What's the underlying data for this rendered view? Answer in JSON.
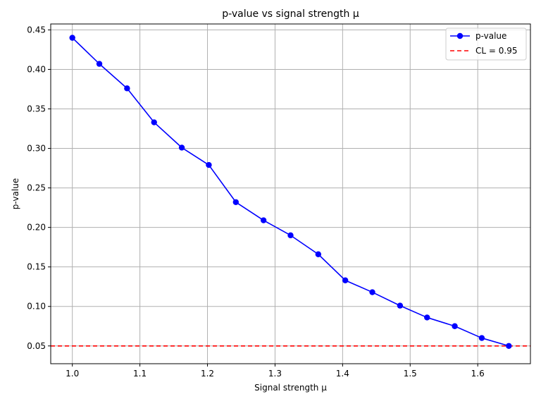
{
  "chart_data": {
    "type": "line",
    "title": "p-value vs signal strength μ",
    "xlabel": "Signal strength μ",
    "ylabel": "p-value",
    "xlim": [
      0.968,
      1.678
    ],
    "ylim": [
      0.0275,
      0.4575
    ],
    "xticks": [
      1.0,
      1.1,
      1.2,
      1.3,
      1.4,
      1.5,
      1.6
    ],
    "xtick_labels": [
      "1.0",
      "1.1",
      "1.2",
      "1.3",
      "1.4",
      "1.5",
      "1.6"
    ],
    "yticks": [
      0.05,
      0.1,
      0.15,
      0.2,
      0.25,
      0.3,
      0.35,
      0.4,
      0.45
    ],
    "ytick_labels": [
      "0.05",
      "0.10",
      "0.15",
      "0.20",
      "0.25",
      "0.30",
      "0.35",
      "0.40",
      "0.45"
    ],
    "grid": true,
    "legend_position": "top-right",
    "series": [
      {
        "name": "p-value",
        "color": "#0000ff",
        "marker": "circle",
        "x": [
          1.0,
          1.04,
          1.081,
          1.121,
          1.162,
          1.202,
          1.242,
          1.283,
          1.323,
          1.364,
          1.404,
          1.444,
          1.485,
          1.525,
          1.566,
          1.606,
          1.646
        ],
        "y": [
          0.44,
          0.407,
          0.376,
          0.333,
          0.301,
          0.279,
          0.232,
          0.209,
          0.19,
          0.166,
          0.133,
          0.118,
          0.101,
          0.086,
          0.075,
          0.06,
          0.05
        ]
      }
    ],
    "reference_lines": [
      {
        "name": "CL = 0.95",
        "orientation": "horizontal",
        "y": 0.05,
        "color": "#ff0000",
        "style": "dashed"
      }
    ]
  }
}
